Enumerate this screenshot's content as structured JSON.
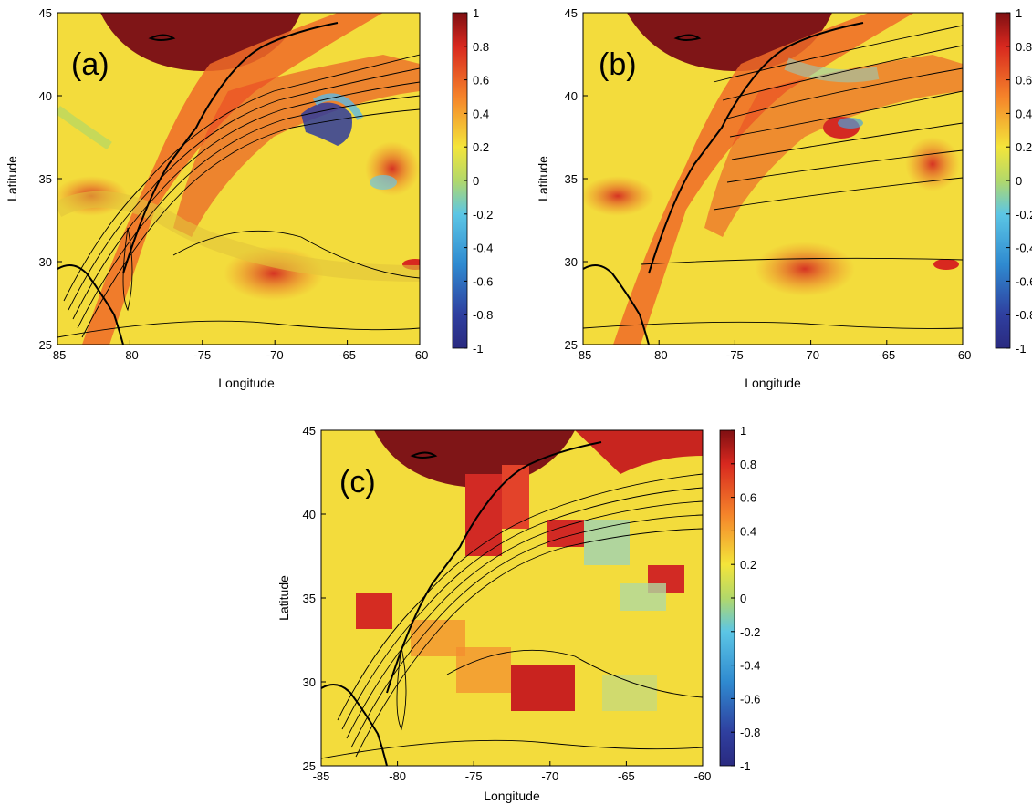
{
  "colorbar": {
    "min": -1,
    "max": 1,
    "ticks": [
      "1",
      "0.8",
      "0.6",
      "0.4",
      "0.2",
      "0",
      "-0.2",
      "-0.4",
      "-0.6",
      "-0.8",
      "-1"
    ]
  },
  "axes": {
    "xlabel": "Longitude",
    "ylabel": "Latitude",
    "xticks": [
      "-85",
      "-80",
      "-75",
      "-70",
      "-65",
      "-60"
    ],
    "yticks": [
      "45",
      "40",
      "35",
      "30",
      "25"
    ],
    "xlim": [
      -85,
      -60
    ],
    "ylim": [
      25,
      45
    ]
  },
  "panels": [
    {
      "label": "(a)",
      "contours": "meandering"
    },
    {
      "label": "(b)",
      "contours": "zonal"
    },
    {
      "label": "(c)",
      "contours": "meandering"
    }
  ],
  "colors": {
    "high": "#8b1a1a",
    "mid": "#f2e33a",
    "low": "#2e3191"
  }
}
